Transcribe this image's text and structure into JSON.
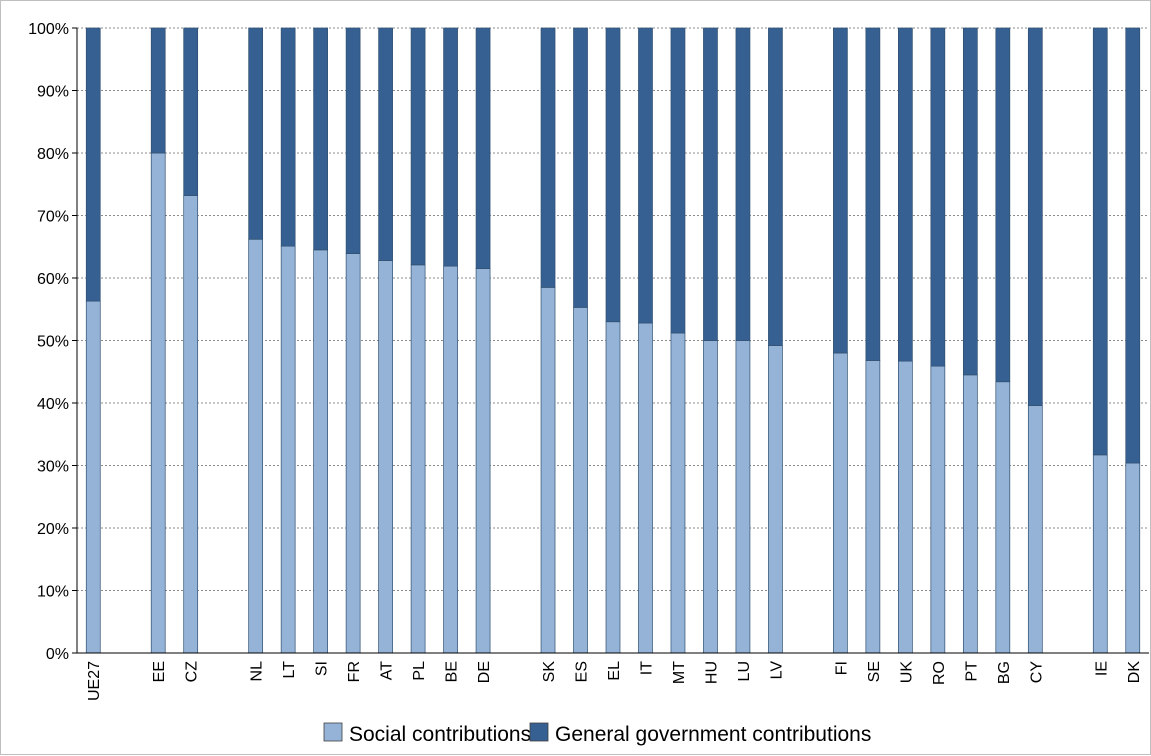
{
  "chart_data": {
    "type": "bar",
    "stacked": true,
    "categories": [
      "UE27",
      "",
      "EE",
      "CZ",
      "",
      "NL",
      "LT",
      "SI",
      "FR",
      "AT",
      "PL",
      "BE",
      "DE",
      "",
      "SK",
      "ES",
      "EL",
      "IT",
      "MT",
      "HU",
      "LU",
      "LV",
      "",
      "FI",
      "SE",
      "UK",
      "RO",
      "PT",
      "BG",
      "CY",
      "",
      "IE",
      "DK"
    ],
    "series": [
      {
        "name": "Social contributions",
        "color": "#95b3d7",
        "values": [
          56.3,
          null,
          80.0,
          73.2,
          null,
          66.2,
          65.1,
          64.5,
          63.9,
          62.8,
          62.1,
          61.9,
          61.5,
          null,
          58.5,
          55.3,
          53.0,
          52.8,
          51.2,
          50.0,
          50.0,
          49.2,
          null,
          48.0,
          46.8,
          46.7,
          45.9,
          44.5,
          43.4,
          39.6,
          null,
          31.7,
          30.4
        ]
      },
      {
        "name": "General government contributions",
        "color": "#376092",
        "values": [
          43.7,
          null,
          20.0,
          26.8,
          null,
          33.8,
          34.9,
          35.5,
          36.1,
          37.2,
          37.9,
          38.1,
          38.5,
          null,
          41.5,
          44.7,
          47.0,
          47.2,
          48.8,
          50.0,
          50.0,
          50.8,
          null,
          52.0,
          53.2,
          53.3,
          54.1,
          55.5,
          56.6,
          60.4,
          null,
          68.3,
          69.6
        ]
      }
    ],
    "y_ticks": [
      "0%",
      "10%",
      "20%",
      "30%",
      "40%",
      "50%",
      "60%",
      "70%",
      "80%",
      "90%",
      "100%"
    ],
    "ylim": [
      0,
      100
    ],
    "grid": true,
    "legend_position": "bottom"
  }
}
